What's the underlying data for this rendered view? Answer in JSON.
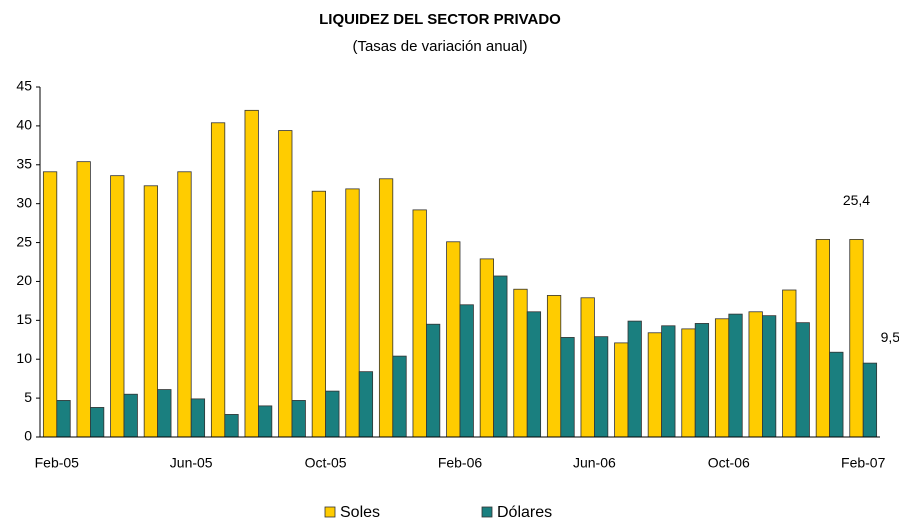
{
  "chart_data": {
    "type": "bar",
    "title": "LIQUIDEZ DEL SECTOR PRIVADO",
    "subtitle": "(Tasas de variación anual)",
    "categories": [
      "Feb-05",
      null,
      null,
      null,
      "Jun-05",
      null,
      null,
      null,
      "Oct-05",
      null,
      null,
      null,
      "Feb-06",
      null,
      null,
      null,
      "Jun-06",
      null,
      null,
      null,
      "Oct-06",
      null,
      null,
      null,
      "Feb-07"
    ],
    "series": [
      {
        "name": "Soles",
        "color": "#ffcc00",
        "values": [
          34.1,
          35.4,
          33.6,
          32.3,
          34.1,
          40.4,
          42.0,
          39.4,
          31.6,
          31.9,
          33.2,
          29.2,
          25.1,
          22.9,
          19.0,
          18.2,
          17.9,
          12.1,
          13.4,
          13.9,
          15.2,
          16.1,
          18.9,
          25.4,
          25.4
        ],
        "value_labels": [
          null,
          null,
          null,
          null,
          null,
          null,
          null,
          null,
          null,
          null,
          null,
          null,
          null,
          null,
          null,
          null,
          null,
          null,
          null,
          null,
          null,
          null,
          null,
          null,
          "25,4"
        ]
      },
      {
        "name": "Dólares",
        "color": "#1a7f7f",
        "values": [
          4.7,
          3.8,
          5.5,
          6.1,
          4.9,
          2.9,
          4.0,
          4.7,
          5.9,
          8.4,
          10.4,
          14.5,
          17.0,
          20.7,
          16.1,
          12.8,
          12.9,
          14.9,
          14.3,
          14.6,
          15.8,
          15.6,
          14.7,
          10.9,
          9.5
        ],
        "value_labels": [
          null,
          null,
          null,
          null,
          null,
          null,
          null,
          null,
          null,
          null,
          null,
          null,
          null,
          null,
          null,
          null,
          null,
          null,
          null,
          null,
          null,
          null,
          null,
          null,
          "9,5"
        ]
      }
    ],
    "ylim": [
      0,
      45
    ],
    "yticks": [
      0,
      5,
      10,
      15,
      20,
      25,
      30,
      35,
      40,
      45
    ],
    "grid": false
  }
}
